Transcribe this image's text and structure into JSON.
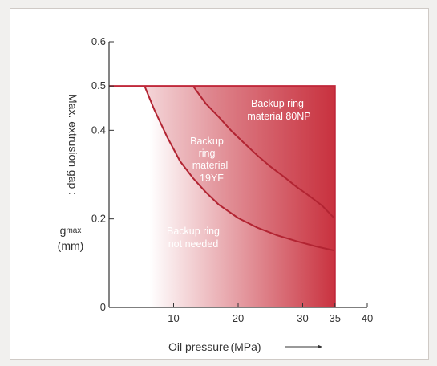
{
  "chart_data": {
    "type": "area",
    "title": "",
    "xlabel": "Oil pressure (MPa)",
    "xlabel_main": "Oil pressure",
    "xlabel_unit": "(MPa)",
    "ylabel": "Max. extrusion gap : gmax (mm)",
    "ylabel_line1": "Max. extrusion gap :",
    "ylabel_symbol": "g",
    "ylabel_sub": "max",
    "ylabel_unit": "(mm)",
    "xlim": [
      0,
      40
    ],
    "ylim": [
      0,
      0.6
    ],
    "x_ticks": [
      10,
      20,
      30,
      35,
      40
    ],
    "x_tick_labels": [
      "10",
      "20",
      "30",
      "35",
      "40"
    ],
    "y_ticks": [
      0,
      0.2,
      0.4,
      0.5,
      0.6
    ],
    "y_tick_labels": [
      "0",
      "0.2",
      "0.4",
      "0.5",
      "0.6"
    ],
    "region_bounds": {
      "x_max": 35,
      "y_max": 0.5
    },
    "series": [
      {
        "key": "boundary_19yf",
        "x": [
          5.5,
          7,
          9,
          11,
          13,
          15,
          17,
          20,
          23,
          26,
          29,
          32,
          35
        ],
        "y": [
          0.5,
          0.447,
          0.385,
          0.33,
          0.292,
          0.26,
          0.232,
          0.202,
          0.18,
          0.163,
          0.15,
          0.138,
          0.128
        ]
      },
      {
        "key": "boundary_80np",
        "x": [
          13,
          15,
          17,
          19,
          21,
          23,
          25,
          27,
          29,
          31,
          33,
          35
        ],
        "y": [
          0.5,
          0.46,
          0.43,
          0.398,
          0.37,
          0.343,
          0.318,
          0.296,
          0.273,
          0.252,
          0.23,
          0.2
        ]
      }
    ],
    "regions": [
      {
        "key": "not_needed",
        "label_lines": [
          "Backup ring",
          "not needed"
        ]
      },
      {
        "key": "material_19yf",
        "label_lines": [
          "Backup",
          "ring",
          "material",
          "19YF"
        ]
      },
      {
        "key": "material_80np",
        "label_lines": [
          "Backup ring",
          "material 80NP"
        ]
      }
    ],
    "grid": false,
    "legend": "none"
  },
  "colors": {
    "fill_dark": "#c9323f",
    "fill_light": "#ffffff",
    "curve": "#b22432",
    "border": "#c0283a",
    "axis": "#333333"
  }
}
